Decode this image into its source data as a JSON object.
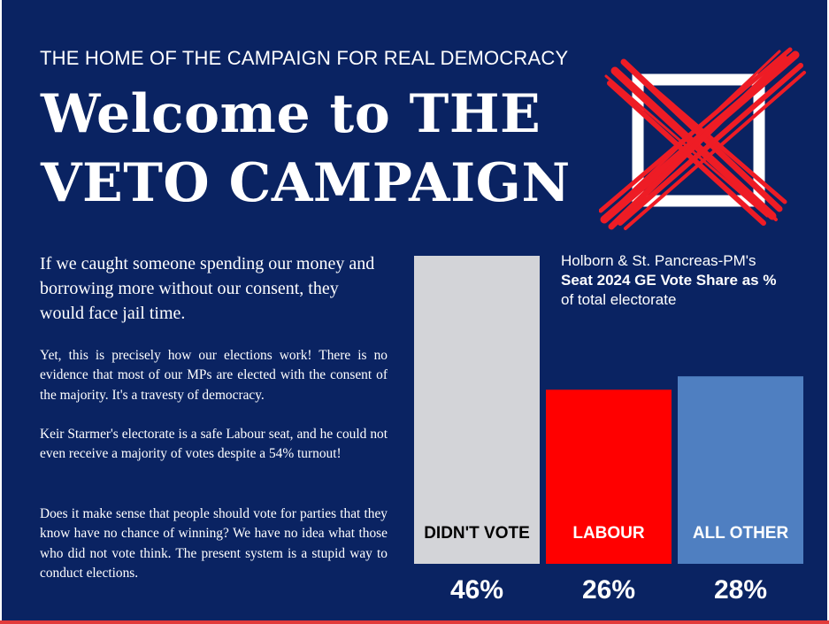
{
  "tagline": "THE HOME OF THE CAMPAIGN FOR REAL DEMOCRACY",
  "headline": {
    "line1": "Welcome to THE",
    "line2": "VETO CAMPAIGN"
  },
  "lead": "If we caught someone spending our money and borrowing more without our consent, they would face jail time.",
  "paragraphs": [
    "Yet, this is precisely how our elections work! There is no evidence that most of our MPs are elected with the consent of the majority. It's a travesty of democracy.",
    "Keir Starmer's electorate is a safe Labour seat, and he could not even receive a majority of votes despite a 54% turnout!",
    "Does it make sense that people should vote for parties that they know have no chance of winning? We have no idea what those who did not vote think. The present system is a stupid way to conduct elections."
  ],
  "colors": {
    "background": "#0a2362",
    "accent_red": "#ee1c25",
    "didnt_vote": "#d3d4d8",
    "labour": "#ff0000",
    "all_other": "#4f7fc1"
  },
  "chart_data": {
    "type": "bar",
    "title_line1": "Holborn & St. Pancreas-PM's",
    "title_line2": "Seat 2024 GE Vote Share as %",
    "title_line3": "of total electorate",
    "categories": [
      "DIDN'T VOTE",
      "LABOUR",
      "ALL OTHER"
    ],
    "values": [
      46,
      26,
      28
    ],
    "value_labels": [
      "46%",
      "26%",
      "28%"
    ],
    "colors": [
      "#d3d4d8",
      "#ff0000",
      "#4f7fc1"
    ],
    "label_colors": [
      "#000000",
      "#ffffff",
      "#ffffff"
    ],
    "ylim": [
      0,
      46
    ],
    "grid": false,
    "legend": "none"
  }
}
